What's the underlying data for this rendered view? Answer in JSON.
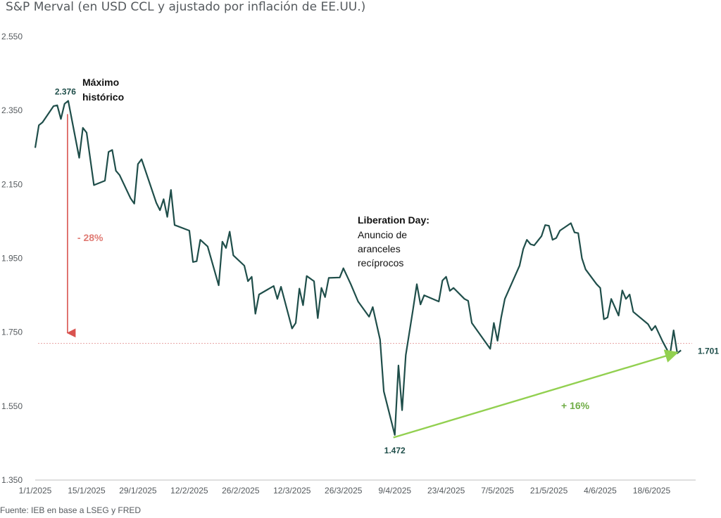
{
  "title": "S&P Merval (en USD CCL y ajustado por inflación de EE.UU.)",
  "source": "Fuente: IEB en base a LSEG y FRED",
  "colors": {
    "line": "#1f4e4a",
    "drawdown": "#d9534f",
    "recovery": "#92d050",
    "reference": "#e8a8a8",
    "axis": "#bfbfbf",
    "text": "#555a5e"
  },
  "chart_data": {
    "type": "line",
    "title": "S&P Merval (en USD CCL y ajustado por inflación de EE.UU.)",
    "ylim": [
      1350,
      2550
    ],
    "yticks": [
      1350,
      1550,
      1750,
      1950,
      2150,
      2350,
      2550
    ],
    "ytick_labels": [
      "1.350",
      "1.550",
      "1.750",
      "1.950",
      "2.150",
      "2.350",
      "2.550"
    ],
    "xlim": [
      "2025-01-01",
      "2025-06-30"
    ],
    "xticks": [
      "2025-01-01",
      "2025-01-15",
      "2025-01-29",
      "2025-02-12",
      "2025-02-26",
      "2025-03-12",
      "2025-03-26",
      "2025-04-09",
      "2025-04-23",
      "2025-05-07",
      "2025-05-21",
      "2025-06-04",
      "2025-06-18"
    ],
    "xtick_labels": [
      "1/1/2025",
      "15/1/2025",
      "29/1/2025",
      "12/2/2025",
      "26/2/2025",
      "12/3/2025",
      "26/3/2025",
      "9/4/2025",
      "23/4/2025",
      "7/5/2025",
      "21/5/2025",
      "4/6/2025",
      "18/6/2025"
    ],
    "series": [
      {
        "values": [
          [
            "2025-01-01",
            2249
          ],
          [
            "2025-01-02",
            2310
          ],
          [
            "2025-01-03",
            2318
          ],
          [
            "2025-01-06",
            2362
          ],
          [
            "2025-01-07",
            2364
          ],
          [
            "2025-01-08",
            2327
          ],
          [
            "2025-01-09",
            2368
          ],
          [
            "2025-01-10",
            2376
          ],
          [
            "2025-01-13",
            2222
          ],
          [
            "2025-01-14",
            2303
          ],
          [
            "2025-01-15",
            2290
          ],
          [
            "2025-01-17",
            2148
          ],
          [
            "2025-01-20",
            2160
          ],
          [
            "2025-01-21",
            2238
          ],
          [
            "2025-01-22",
            2243
          ],
          [
            "2025-01-23",
            2187
          ],
          [
            "2025-01-24",
            2175
          ],
          [
            "2025-01-27",
            2112
          ],
          [
            "2025-01-28",
            2098
          ],
          [
            "2025-01-29",
            2205
          ],
          [
            "2025-01-30",
            2218
          ],
          [
            "2025-02-03",
            2100
          ],
          [
            "2025-02-04",
            2080
          ],
          [
            "2025-02-05",
            2110
          ],
          [
            "2025-02-06",
            2062
          ],
          [
            "2025-02-07",
            2135
          ],
          [
            "2025-02-08",
            2040
          ],
          [
            "2025-02-12",
            2025
          ],
          [
            "2025-02-13",
            1940
          ],
          [
            "2025-02-14",
            1942
          ],
          [
            "2025-02-15",
            2000
          ],
          [
            "2025-02-17",
            1982
          ],
          [
            "2025-02-20",
            1877
          ],
          [
            "2025-02-21",
            1995
          ],
          [
            "2025-02-22",
            1978
          ],
          [
            "2025-02-23",
            2022
          ],
          [
            "2025-02-24",
            1958
          ],
          [
            "2025-02-27",
            1930
          ],
          [
            "2025-02-28",
            1888
          ],
          [
            "2025-03-01",
            1900
          ],
          [
            "2025-03-02",
            1800
          ],
          [
            "2025-03-03",
            1852
          ],
          [
            "2025-03-07",
            1875
          ],
          [
            "2025-03-08",
            1840
          ],
          [
            "2025-03-09",
            1873
          ],
          [
            "2025-03-12",
            1760
          ],
          [
            "2025-03-13",
            1775
          ],
          [
            "2025-03-14",
            1868
          ],
          [
            "2025-03-15",
            1823
          ],
          [
            "2025-03-16",
            1902
          ],
          [
            "2025-03-18",
            1888
          ],
          [
            "2025-03-19",
            1788
          ],
          [
            "2025-03-20",
            1870
          ],
          [
            "2025-03-21",
            1845
          ],
          [
            "2025-03-22",
            1897
          ],
          [
            "2025-03-25",
            1898
          ],
          [
            "2025-03-26",
            1923
          ],
          [
            "2025-03-28",
            1880
          ],
          [
            "2025-03-30",
            1833
          ],
          [
            "2025-04-02",
            1792
          ],
          [
            "2025-04-03",
            1818
          ],
          [
            "2025-04-05",
            1730
          ],
          [
            "2025-04-06",
            1590
          ],
          [
            "2025-04-09",
            1472
          ],
          [
            "2025-04-10",
            1660
          ],
          [
            "2025-04-11",
            1539
          ],
          [
            "2025-04-12",
            1688
          ],
          [
            "2025-04-14",
            1813
          ],
          [
            "2025-04-15",
            1880
          ],
          [
            "2025-04-16",
            1825
          ],
          [
            "2025-04-17",
            1850
          ],
          [
            "2025-04-21",
            1833
          ],
          [
            "2025-04-22",
            1890
          ],
          [
            "2025-04-23",
            1900
          ],
          [
            "2025-04-24",
            1862
          ],
          [
            "2025-04-25",
            1870
          ],
          [
            "2025-04-28",
            1840
          ],
          [
            "2025-04-29",
            1835
          ],
          [
            "2025-04-30",
            1775
          ],
          [
            "2025-05-05",
            1705
          ],
          [
            "2025-05-06",
            1775
          ],
          [
            "2025-05-07",
            1727
          ],
          [
            "2025-05-08",
            1790
          ],
          [
            "2025-05-09",
            1840
          ],
          [
            "2025-05-13",
            1930
          ],
          [
            "2025-05-14",
            1975
          ],
          [
            "2025-05-15",
            2000
          ],
          [
            "2025-05-16",
            1988
          ],
          [
            "2025-05-17",
            1985
          ],
          [
            "2025-05-19",
            2010
          ],
          [
            "2025-05-20",
            2040
          ],
          [
            "2025-05-21",
            2038
          ],
          [
            "2025-05-22",
            2000
          ],
          [
            "2025-05-23",
            2005
          ],
          [
            "2025-05-24",
            2025
          ],
          [
            "2025-05-27",
            2045
          ],
          [
            "2025-05-28",
            2020
          ],
          [
            "2025-05-29",
            2018
          ],
          [
            "2025-05-30",
            1950
          ],
          [
            "2025-05-31",
            1920
          ],
          [
            "2025-06-03",
            1880
          ],
          [
            "2025-06-04",
            1870
          ],
          [
            "2025-06-05",
            1785
          ],
          [
            "2025-06-06",
            1790
          ],
          [
            "2025-06-07",
            1840
          ],
          [
            "2025-06-09",
            1795
          ],
          [
            "2025-06-10",
            1863
          ],
          [
            "2025-06-11",
            1840
          ],
          [
            "2025-06-12",
            1852
          ],
          [
            "2025-06-13",
            1805
          ],
          [
            "2025-06-17",
            1772
          ],
          [
            "2025-06-18",
            1755
          ],
          [
            "2025-06-19",
            1767
          ],
          [
            "2025-06-21",
            1725
          ],
          [
            "2025-06-23",
            1688
          ],
          [
            "2025-06-24",
            1755
          ],
          [
            "2025-06-25",
            1693
          ],
          [
            "2025-06-26",
            1701
          ]
        ]
      }
    ],
    "reference_line": {
      "y": 1720
    },
    "annotations": [
      {
        "id": "peak",
        "value_label": "2.376",
        "x": "2025-01-10",
        "y": 2376,
        "title_lines": [
          "Máximo",
          "histórico"
        ]
      },
      {
        "id": "drawdown",
        "label": "- 28%",
        "from": [
          "2025-01-10",
          2340
        ],
        "to": [
          "2025-01-10",
          1748
        ]
      },
      {
        "id": "liberation",
        "title": "Liberation Day:",
        "lines": [
          "Anuncio de",
          "aranceles",
          "recíprocos"
        ]
      },
      {
        "id": "trough",
        "value_label": "1.472",
        "x": "2025-04-09",
        "y": 1472
      },
      {
        "id": "last",
        "value_label": "1.701",
        "x": "2025-06-26",
        "y": 1701
      },
      {
        "id": "recovery",
        "label": "+ 16%",
        "from": [
          "2025-04-09",
          1465
        ],
        "to": [
          "2025-06-25",
          1695
        ]
      }
    ]
  }
}
